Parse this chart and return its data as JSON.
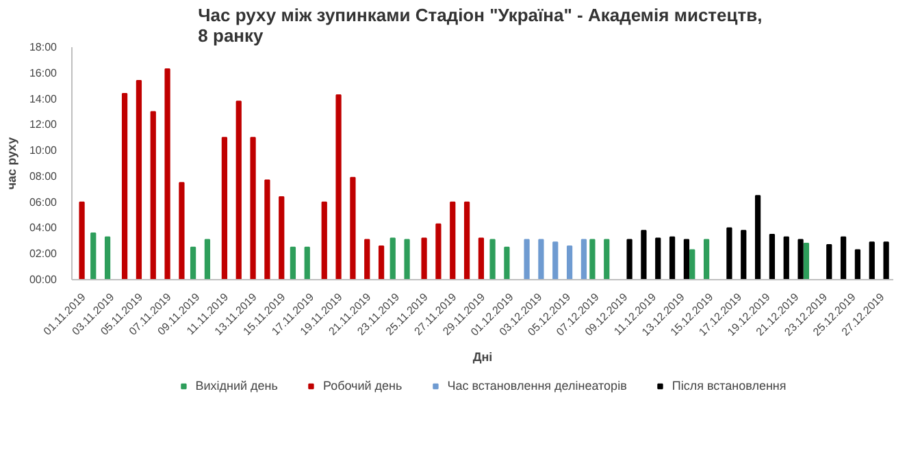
{
  "chart_data": {
    "type": "bar",
    "title": "Час руху між зупинками Стадіон \"Україна\"  - Академія мистецтв, 8 ранку",
    "xlabel": "Дні",
    "ylabel": "час руху",
    "categories": [
      "01.11.2019",
      null,
      "03.11.2019",
      null,
      "05.11.2019",
      null,
      "07.11.2019",
      null,
      "09.11.2019",
      null,
      "11.11.2019",
      null,
      "13.11.2019",
      null,
      "15.11.2019",
      null,
      "17.11.2019",
      null,
      "19.11.2019",
      null,
      "21.11.2019",
      null,
      "23.11.2019",
      null,
      "25.11.2019",
      null,
      "27.11.2019",
      null,
      "29.11.2019",
      null,
      "01.12.2019",
      null,
      "03.12.2019",
      null,
      "05.12.2019",
      null,
      "07.12.2019",
      null,
      "09.12.2019",
      null,
      "11.12.2019",
      null,
      "13.12.2019",
      null,
      "15.12.2019",
      null,
      "17.12.2019",
      null,
      "19.12.2019",
      null,
      "21.12.2019",
      null,
      "23.12.2019",
      null,
      "25.12.2019",
      null,
      "27.12.2019"
    ],
    "series": [
      {
        "name": "Вихідний день",
        "color": "#2e9e5b",
        "values": [
          null,
          3.6,
          3.3,
          null,
          null,
          null,
          null,
          null,
          2.5,
          3.1,
          null,
          null,
          null,
          null,
          null,
          2.5,
          2.5,
          null,
          null,
          null,
          null,
          null,
          3.2,
          3.1,
          null,
          null,
          null,
          null,
          null,
          3.1,
          2.5,
          null,
          null,
          null,
          null,
          null,
          3.1,
          3.1,
          null,
          null,
          null,
          null,
          null,
          2.3,
          3.1,
          null,
          null,
          null,
          null,
          null,
          null,
          2.8,
          null,
          null,
          null,
          null,
          null
        ]
      },
      {
        "name": "Робочий день",
        "color": "#c00000",
        "values": [
          6.0,
          null,
          null,
          14.4,
          15.4,
          13.0,
          16.3,
          7.5,
          null,
          null,
          11.0,
          13.8,
          11.0,
          7.7,
          6.4,
          null,
          null,
          6.0,
          14.3,
          7.9,
          3.1,
          2.6,
          null,
          null,
          3.2,
          4.3,
          6.0,
          6.0,
          3.2,
          null,
          null,
          null,
          null,
          null,
          null,
          null,
          null,
          null,
          null,
          null,
          null,
          null,
          null,
          null,
          null,
          null,
          null,
          null,
          null,
          null,
          null,
          null,
          null,
          null,
          null,
          null,
          null
        ]
      },
      {
        "name": "Час встановлення делінеаторів",
        "color": "#6f9bd1",
        "values": [
          null,
          null,
          null,
          null,
          null,
          null,
          null,
          null,
          null,
          null,
          null,
          null,
          null,
          null,
          null,
          null,
          null,
          null,
          null,
          null,
          null,
          null,
          null,
          null,
          null,
          null,
          null,
          null,
          null,
          null,
          null,
          3.1,
          3.1,
          2.9,
          2.6,
          3.1,
          null,
          null,
          null,
          null,
          null,
          null,
          null,
          null,
          null,
          null,
          null,
          null,
          null,
          null,
          null,
          null,
          null,
          null,
          null,
          null,
          null
        ]
      },
      {
        "name": "Після встановлення",
        "color": "#000000",
        "values": [
          null,
          null,
          null,
          null,
          null,
          null,
          null,
          null,
          null,
          null,
          null,
          null,
          null,
          null,
          null,
          null,
          null,
          null,
          null,
          null,
          null,
          null,
          null,
          null,
          null,
          null,
          null,
          null,
          null,
          null,
          null,
          null,
          null,
          null,
          null,
          null,
          null,
          null,
          3.1,
          3.8,
          3.2,
          3.3,
          3.1,
          null,
          null,
          4.0,
          3.8,
          6.5,
          3.5,
          3.3,
          3.1,
          null,
          2.7,
          3.3,
          2.3,
          2.9,
          2.9
        ]
      }
    ],
    "ylim": [
      0,
      18
    ],
    "yticks": [
      {
        "value": 0,
        "label": "00:00"
      },
      {
        "value": 2,
        "label": "02:00"
      },
      {
        "value": 4,
        "label": "04:00"
      },
      {
        "value": 6,
        "label": "06:00"
      },
      {
        "value": 8,
        "label": "08:00"
      },
      {
        "value": 10,
        "label": "10:00"
      },
      {
        "value": 12,
        "label": "12:00"
      },
      {
        "value": 14,
        "label": "14:00"
      },
      {
        "value": 16,
        "label": "16:00"
      },
      {
        "value": 18,
        "label": "18:00"
      }
    ],
    "grid": false,
    "legend": "bottom"
  }
}
